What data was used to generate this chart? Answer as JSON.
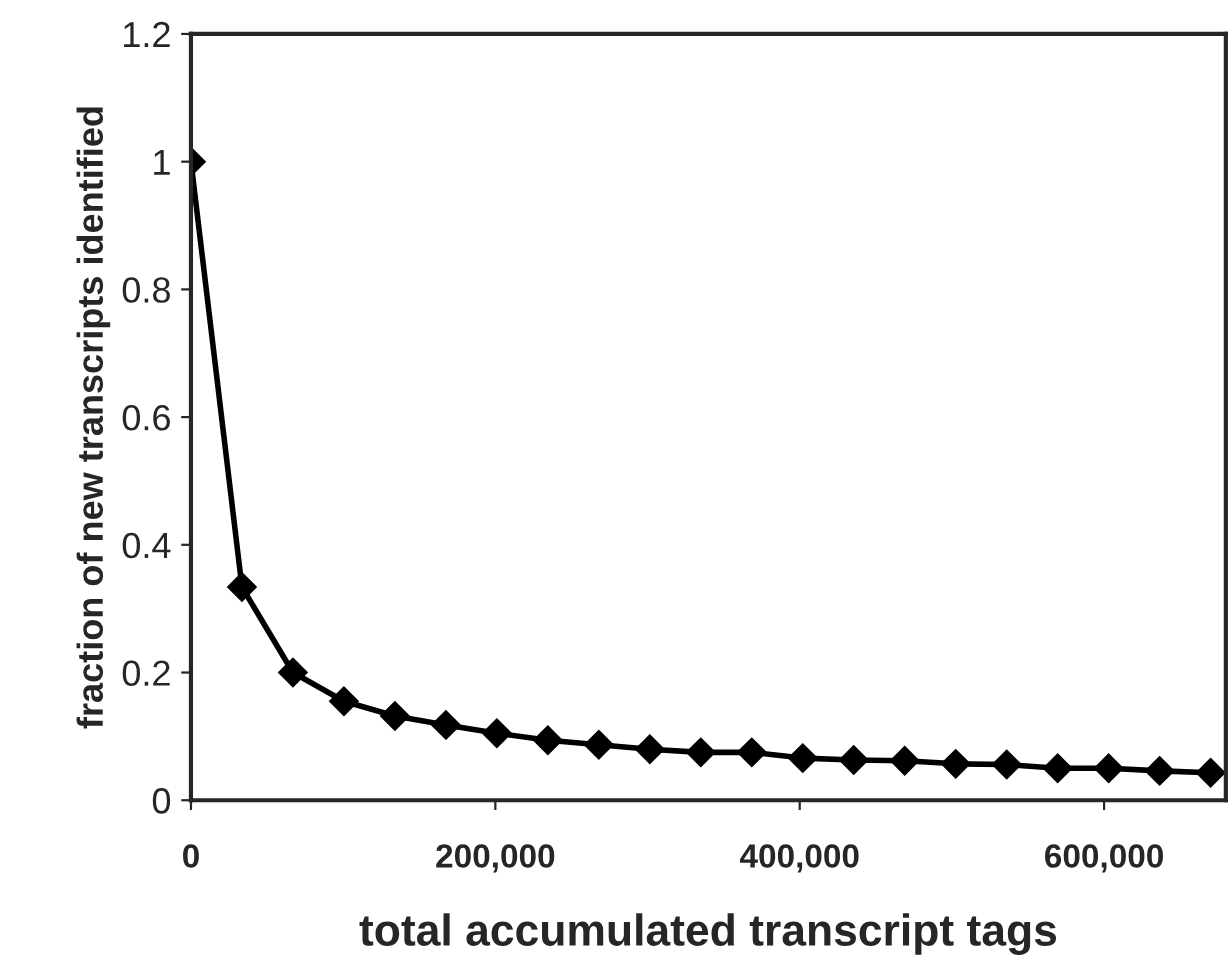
{
  "chart_data": {
    "type": "line",
    "xlabel": "total accumulated transcript tags",
    "ylabel": "fraction of new transcripts identified",
    "x": [
      0,
      33500,
      67000,
      100500,
      134000,
      167500,
      201000,
      234500,
      268000,
      301500,
      335000,
      368500,
      402000,
      435500,
      469000,
      502500,
      536000,
      569500,
      603000,
      636500,
      670000
    ],
    "series": [
      {
        "color": "#000000",
        "values": [
          1.0,
          0.334,
          0.2,
          0.155,
          0.132,
          0.118,
          0.105,
          0.094,
          0.087,
          0.08,
          0.075,
          0.075,
          0.066,
          0.063,
          0.062,
          0.057,
          0.056,
          0.05,
          0.05,
          0.046,
          0.043
        ]
      }
    ],
    "xlim": [
      0,
      680000
    ],
    "xticks": [
      0,
      {
        "value": 200000,
        "label": "200,000"
      },
      {
        "value": 400000,
        "label": "400,000"
      },
      {
        "value": 600000,
        "label": "600,000"
      }
    ],
    "ylim": [
      0,
      1.2
    ],
    "yticks": [
      0,
      0.2,
      0.4,
      0.6,
      0.8,
      1,
      1.2
    ],
    "marker": "diamond",
    "line_style": "solid",
    "grid": false
  }
}
